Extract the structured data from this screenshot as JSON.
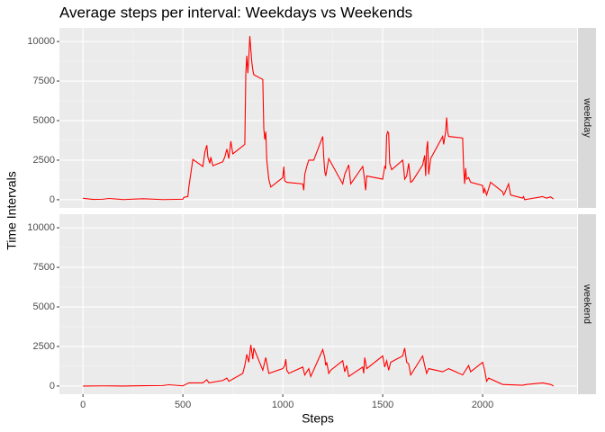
{
  "chart_data": {
    "type": "line",
    "title": "Average steps per interval: Weekdays vs Weekends",
    "x_label": "Steps",
    "y_label": "Time Intervals",
    "color": "#ff0000",
    "grid": true,
    "xlim": [
      -117.75,
      2472.75
    ],
    "xticks": [
      0,
      500,
      1000,
      1500,
      2000
    ],
    "ylim": [
      -517,
      10860
    ],
    "yticks": [
      0,
      2500,
      5000,
      7500,
      10000
    ],
    "facets": [
      {
        "label": "weekday",
        "x": [
          0,
          50,
          100,
          130,
          200,
          300,
          400,
          500,
          505,
          525,
          530,
          550,
          600,
          610,
          620,
          625,
          635,
          640,
          650,
          700,
          710,
          720,
          730,
          740,
          750,
          800,
          810,
          815,
          820,
          825,
          830,
          835,
          840,
          845,
          850,
          855,
          900,
          905,
          910,
          915,
          920,
          930,
          940,
          1000,
          1005,
          1010,
          1020,
          1100,
          1105,
          1110,
          1120,
          1130,
          1155,
          1200,
          1205,
          1210,
          1215,
          1230,
          1300,
          1310,
          1330,
          1340,
          1400,
          1405,
          1415,
          1420,
          1500,
          1510,
          1515,
          1520,
          1525,
          1530,
          1535,
          1545,
          1600,
          1605,
          1610,
          1620,
          1630,
          1640,
          1650,
          1700,
          1710,
          1715,
          1720,
          1725,
          1730,
          1740,
          1800,
          1805,
          1815,
          1820,
          1825,
          1830,
          1900,
          1905,
          1910,
          1915,
          1920,
          1930,
          1940,
          2000,
          2005,
          2010,
          2020,
          2030,
          2040,
          2100,
          2105,
          2110,
          2130,
          2140,
          2200,
          2205,
          2210,
          2300,
          2320,
          2340,
          2355
        ],
        "values": [
          90,
          20,
          30,
          80,
          10,
          60,
          10,
          30,
          150,
          200,
          800,
          2550,
          2100,
          3000,
          3450,
          2700,
          2300,
          2700,
          2150,
          2400,
          2700,
          3200,
          2600,
          3700,
          2900,
          3400,
          3500,
          8000,
          9100,
          8000,
          9000,
          10343,
          9500,
          8700,
          8200,
          7900,
          7600,
          4500,
          3800,
          4300,
          2500,
          1300,
          800,
          1400,
          2100,
          1200,
          1100,
          1000,
          600,
          1600,
          2100,
          2500,
          2500,
          4000,
          2700,
          1800,
          1500,
          2600,
          1000,
          1600,
          2200,
          1000,
          2100,
          1700,
          600,
          1500,
          1300,
          2100,
          2000,
          4100,
          4300,
          4200,
          2300,
          1900,
          2500,
          2000,
          1300,
          1500,
          2300,
          1100,
          1200,
          2200,
          2800,
          1500,
          3200,
          3700,
          1600,
          2600,
          4000,
          3500,
          4300,
          5200,
          4300,
          4000,
          3900,
          2000,
          1000,
          2000,
          1300,
          1400,
          1100,
          900,
          400,
          700,
          300,
          700,
          1100,
          500,
          300,
          400,
          1000,
          300,
          100,
          200,
          0,
          200,
          100,
          180,
          50
        ]
      },
      {
        "label": "weekend",
        "x": [
          0,
          100,
          200,
          300,
          400,
          430,
          500,
          530,
          600,
          620,
          630,
          700,
          720,
          730,
          800,
          810,
          820,
          830,
          840,
          850,
          855,
          900,
          915,
          930,
          1000,
          1010,
          1015,
          1020,
          1030,
          1100,
          1110,
          1130,
          1140,
          1200,
          1210,
          1215,
          1220,
          1230,
          1240,
          1300,
          1310,
          1320,
          1330,
          1400,
          1405,
          1410,
          1420,
          1500,
          1510,
          1520,
          1530,
          1540,
          1600,
          1610,
          1620,
          1630,
          1640,
          1700,
          1710,
          1720,
          1730,
          1800,
          1830,
          1900,
          1930,
          1940,
          2000,
          2010,
          2020,
          2030,
          2100,
          2200,
          2220,
          2300,
          2340,
          2355
        ],
        "values": [
          0,
          10,
          0,
          20,
          30,
          80,
          10,
          200,
          200,
          400,
          200,
          350,
          500,
          300,
          800,
          1300,
          2000,
          1500,
          2600,
          1700,
          2400,
          1000,
          1800,
          800,
          1100,
          1300,
          1700,
          1000,
          800,
          1200,
          700,
          1100,
          600,
          2300,
          1800,
          1300,
          1500,
          800,
          1000,
          1600,
          900,
          1300,
          600,
          1200,
          800,
          1800,
          1100,
          1900,
          1200,
          1600,
          1000,
          1500,
          1900,
          2400,
          1500,
          1400,
          700,
          1900,
          1300,
          800,
          1100,
          900,
          1100,
          700,
          1300,
          900,
          1500,
          1000,
          300,
          500,
          100,
          50,
          100,
          200,
          100,
          0
        ]
      }
    ]
  }
}
